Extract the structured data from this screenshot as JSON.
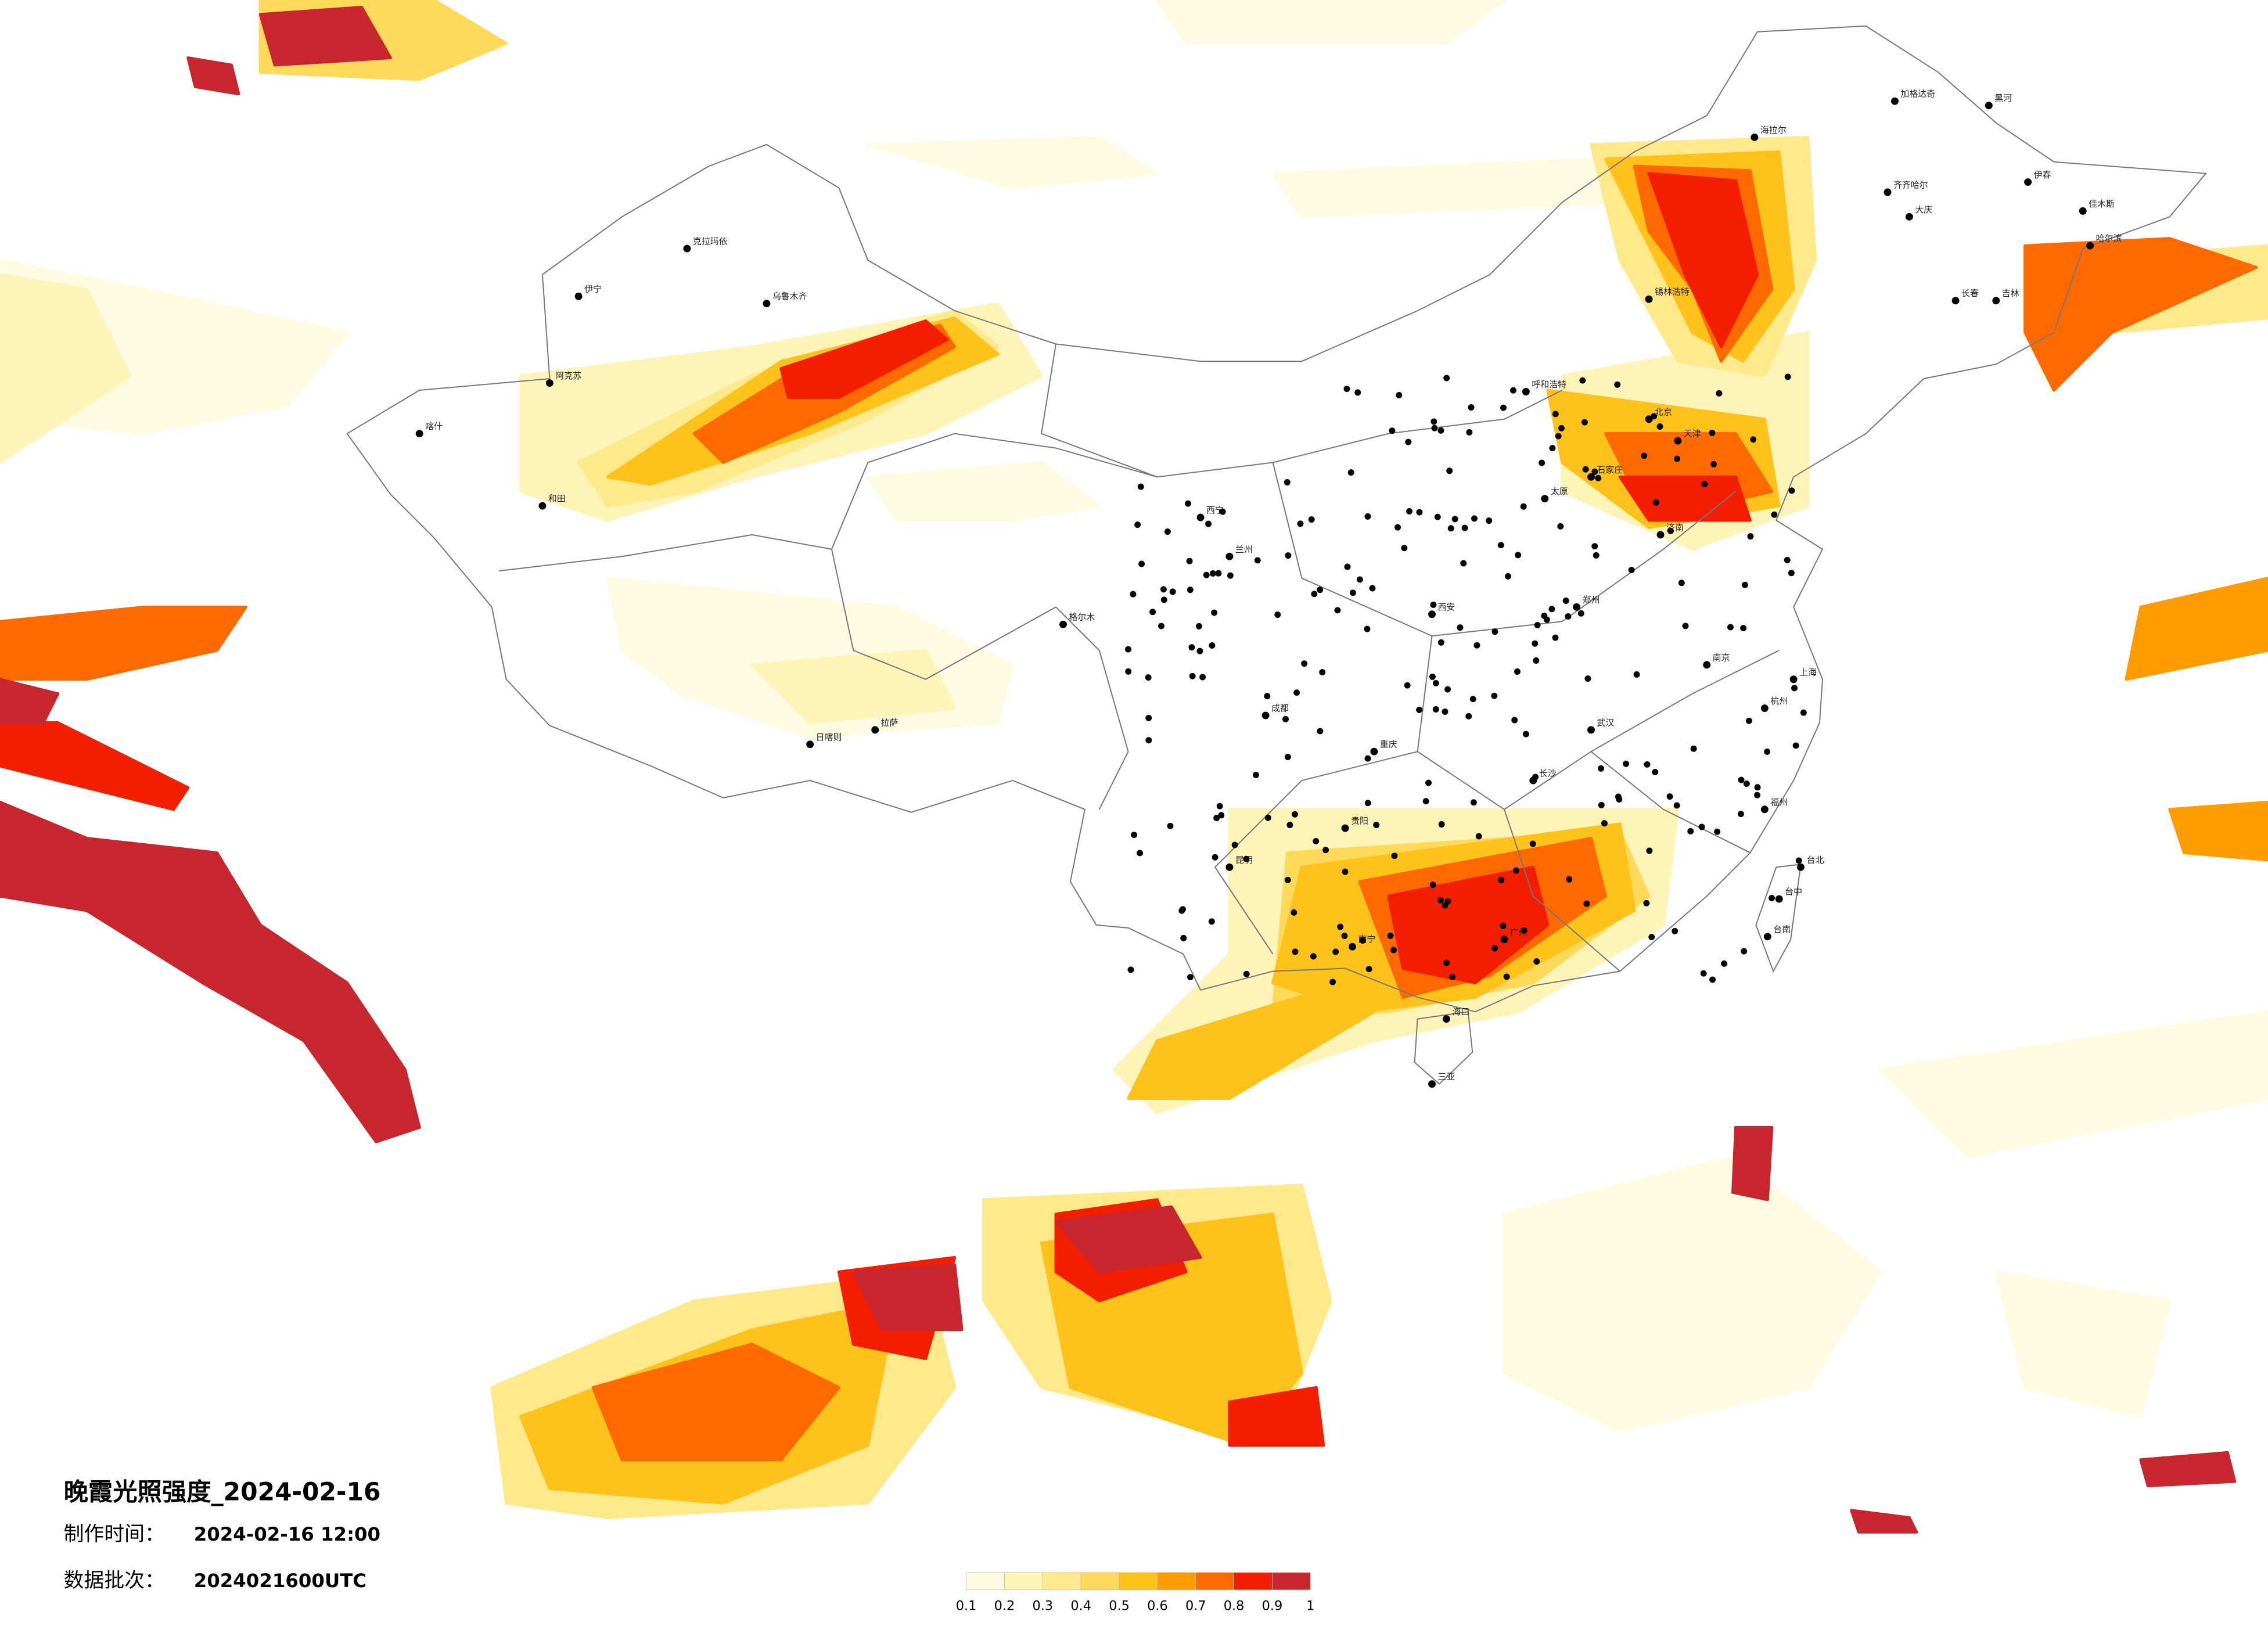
{
  "header": {
    "title": "晚霞光照强度_2024-02-16",
    "made_label": "制作时间：",
    "made_value": "2024-02-16 12:00",
    "batch_label": "数据批次：",
    "batch_value": "2024021600UTC"
  },
  "legend": {
    "colors": [
      "#fffbe3",
      "#fff4b8",
      "#ffe98a",
      "#ffd95a",
      "#ffc21a",
      "#ff9d00",
      "#ff6a00",
      "#f31d00",
      "#c8262e"
    ],
    "ticks": [
      0.1,
      0.2,
      0.3,
      0.4,
      0.5,
      0.6,
      0.7,
      0.8,
      0.9,
      1
    ]
  },
  "cities": [
    "加格达奇",
    "黑河",
    "海拉尔",
    "齐齐哈尔",
    "大庆",
    "伊春",
    "佳木斯",
    "哈尔滨",
    "长春",
    "吉林",
    "锡林浩特",
    "呼和浩特",
    "北京",
    "天津",
    "石家庄",
    "太原",
    "济南",
    "郑州",
    "西安",
    "兰州",
    "西宁",
    "乌鲁木齐",
    "克拉玛依",
    "伊宁",
    "阿克苏",
    "喀什",
    "和田",
    "格尔木",
    "拉萨",
    "日喀则",
    "成都",
    "重庆",
    "贵阳",
    "昆明",
    "南宁",
    "广州",
    "海口",
    "三亚",
    "武汉",
    "长沙",
    "南京",
    "杭州",
    "上海",
    "福州",
    "台北",
    "台中",
    "台南"
  ]
}
